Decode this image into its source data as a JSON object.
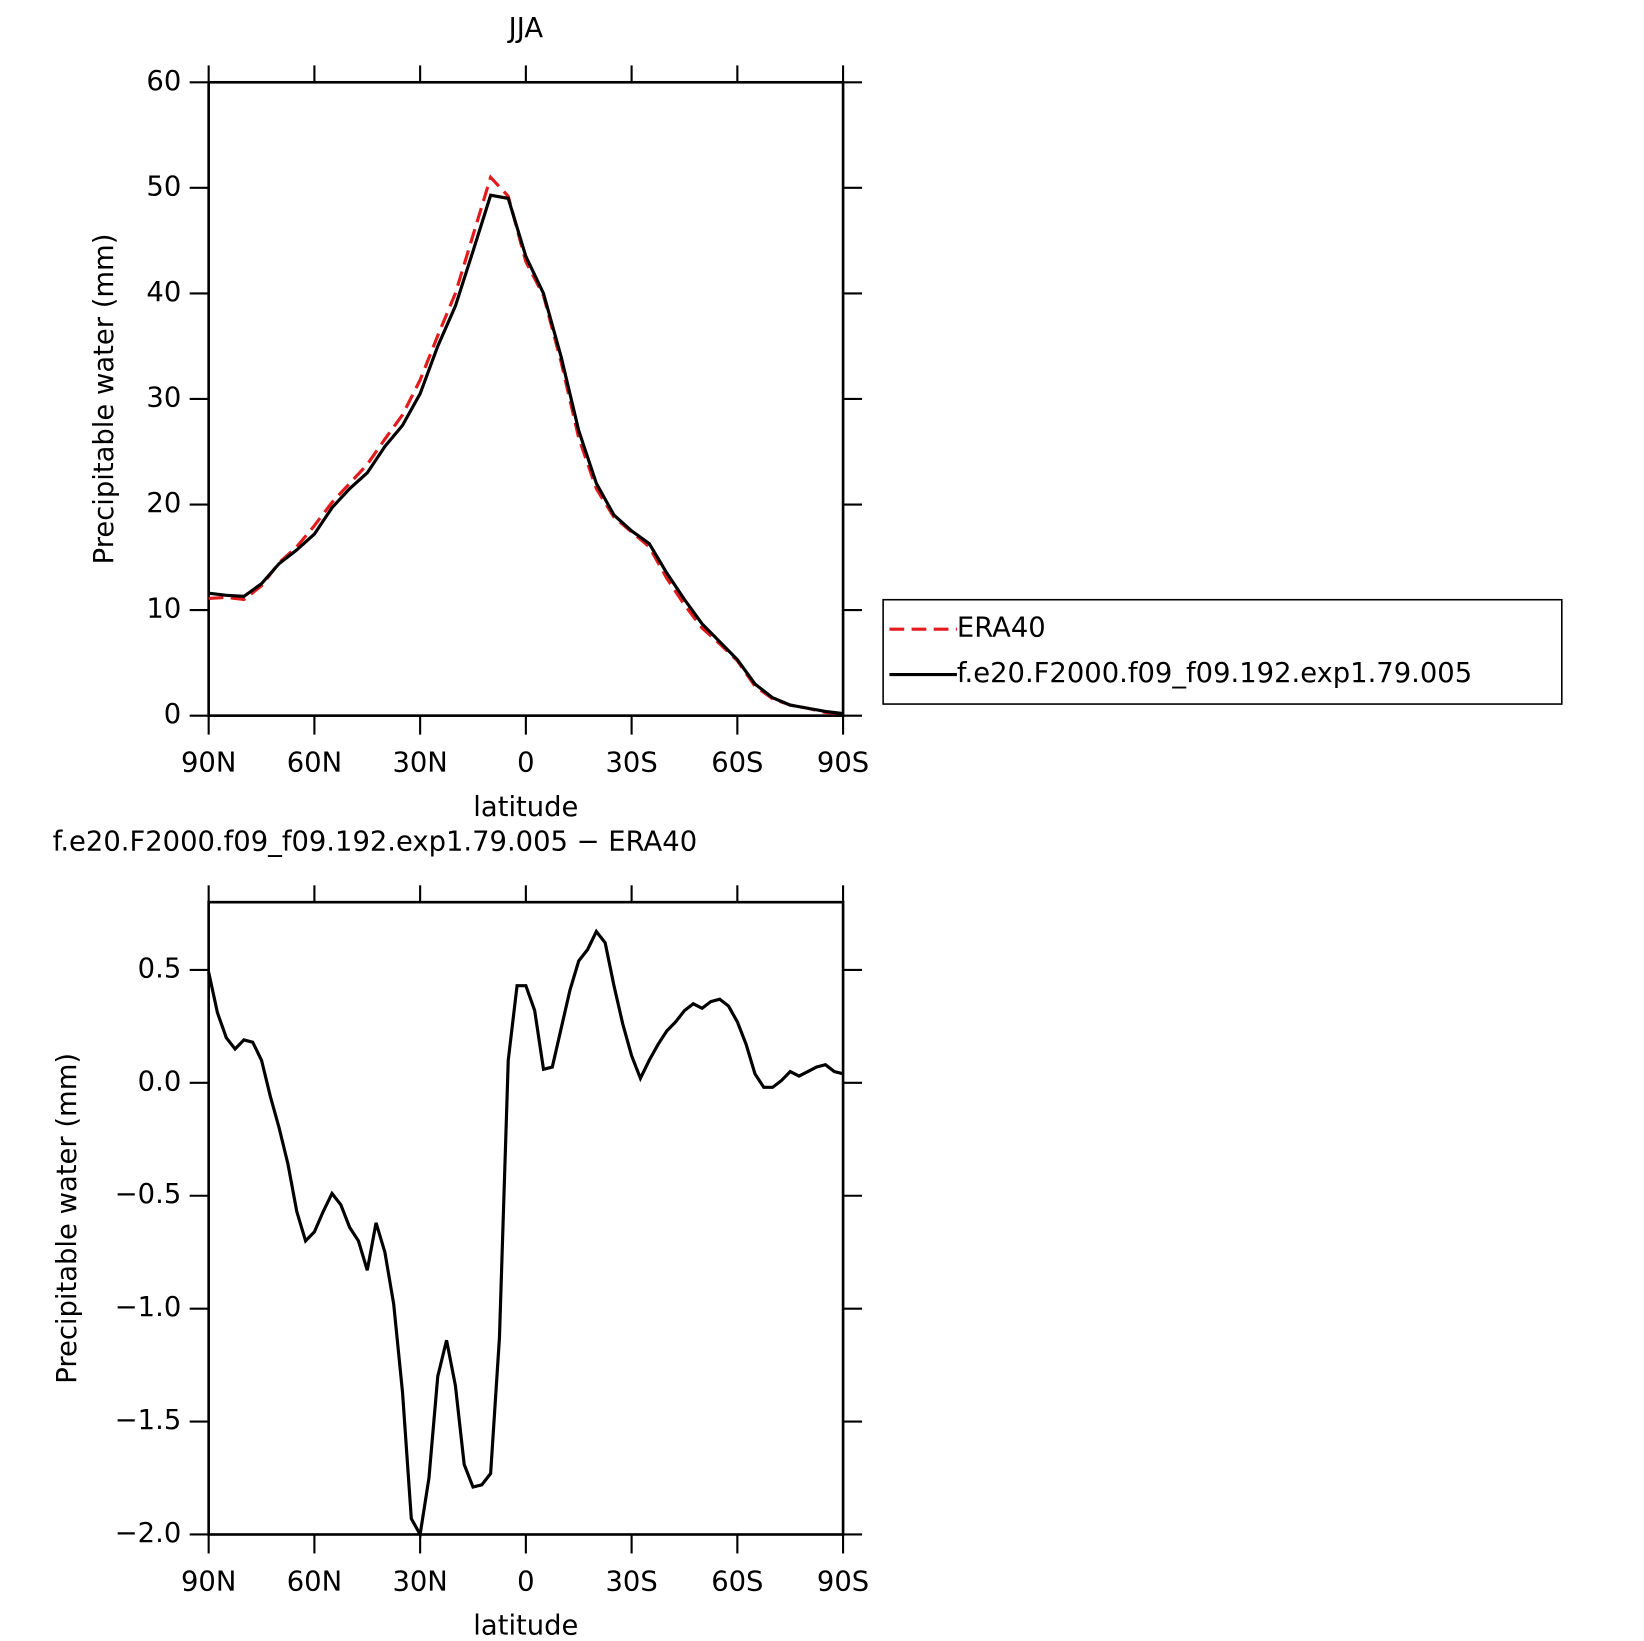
{
  "chart_data": [
    {
      "type": "line",
      "title": "JJA",
      "x_label": "latitude",
      "y_label": "Precipitable water (mm)",
      "x": [
        90,
        85,
        80,
        75,
        70,
        65,
        60,
        55,
        50,
        45,
        40,
        35,
        30,
        25,
        20,
        15,
        10,
        5,
        0,
        -5,
        -10,
        -15,
        -20,
        -25,
        -30,
        -35,
        -40,
        -45,
        -50,
        -55,
        -60,
        -65,
        -70,
        -75,
        -80,
        -85,
        -90
      ],
      "series": [
        {
          "name": "ERA40",
          "color": "#e41a1c",
          "linestyle": "dashed",
          "values": [
            11.1,
            11.2,
            11.0,
            12.3,
            14.5,
            16.0,
            18.0,
            20.2,
            22.0,
            23.8,
            26.2,
            28.5,
            31.8,
            36.0,
            40.0,
            45.5,
            51.0,
            49.2,
            43.0,
            39.8,
            33.5,
            26.3,
            21.5,
            18.8,
            17.4,
            16.0,
            13.0,
            10.5,
            8.3,
            6.8,
            5.2,
            2.8,
            1.6,
            1.0,
            0.7,
            0.3,
            0.2
          ]
        },
        {
          "name": "f.e20.F2000.f09_f09.192.exp1.79.005",
          "color": "#000000",
          "linestyle": "solid",
          "values": [
            11.6,
            11.4,
            11.3,
            12.5,
            14.4,
            15.7,
            17.2,
            19.7,
            21.5,
            23.0,
            25.5,
            27.5,
            30.5,
            35.0,
            38.8,
            44.0,
            49.3,
            49.0,
            43.5,
            40.0,
            34.0,
            27.0,
            22.0,
            19.0,
            17.5,
            16.3,
            13.5,
            11.0,
            8.7,
            7.0,
            5.3,
            3.0,
            1.7,
            1.0,
            0.7,
            0.4,
            0.2
          ]
        }
      ],
      "xlim": [
        90,
        -90
      ],
      "xticks": [
        {
          "value": 90,
          "label": "90N"
        },
        {
          "value": 60,
          "label": "60N"
        },
        {
          "value": 30,
          "label": "30N"
        },
        0,
        {
          "value": -30,
          "label": "30S"
        },
        {
          "value": -60,
          "label": "60S"
        },
        {
          "value": -90,
          "label": "90S"
        }
      ],
      "ylim": [
        0,
        60
      ],
      "yticks": [
        0,
        10,
        20,
        30,
        40,
        50,
        60
      ],
      "legend": "right"
    },
    {
      "type": "line",
      "title": "f.e20.F2000.f09_f09.192.exp1.79.005 − ERA40",
      "x_label": "latitude",
      "y_label": "Precipitable water (mm)",
      "x": [
        90,
        87.5,
        85,
        82.5,
        80,
        77.5,
        75,
        72.5,
        70,
        67.5,
        65,
        62.5,
        60,
        57.5,
        55,
        52.5,
        50,
        47.5,
        45,
        42.5,
        40,
        37.5,
        35,
        32.5,
        30,
        27.5,
        25,
        22.5,
        20,
        17.5,
        15,
        12.5,
        10,
        7.5,
        5,
        2.5,
        0,
        -2.5,
        -5,
        -7.5,
        -10,
        -12.5,
        -15,
        -17.5,
        -20,
        -22.5,
        -25,
        -27.5,
        -30,
        -32.5,
        -35,
        -37.5,
        -40,
        -42.5,
        -45,
        -47.5,
        -50,
        -52.5,
        -55,
        -57.5,
        -60,
        -62.5,
        -65,
        -67.5,
        -70,
        -72.5,
        -75,
        -77.5,
        -80,
        -82.5,
        -85,
        -87.5,
        -90
      ],
      "series": [
        {
          "name": "f.e20.F2000.f09_f09.192.exp1.79.005 − ERA40",
          "color": "#000000",
          "linestyle": "solid",
          "values": [
            0.49,
            0.31,
            0.2,
            0.15,
            0.19,
            0.18,
            0.1,
            -0.06,
            -0.2,
            -0.36,
            -0.57,
            -0.7,
            -0.66,
            -0.57,
            -0.49,
            -0.54,
            -0.64,
            -0.7,
            -0.83,
            -0.62,
            -0.75,
            -0.98,
            -1.37,
            -1.93,
            -2.0,
            -1.75,
            -1.3,
            -1.14,
            -1.34,
            -1.69,
            -1.79,
            -1.78,
            -1.73,
            -1.13,
            0.1,
            0.43,
            0.43,
            0.32,
            0.06,
            0.07,
            0.24,
            0.41,
            0.54,
            0.59,
            0.67,
            0.62,
            0.43,
            0.26,
            0.12,
            0.02,
            0.1,
            0.17,
            0.23,
            0.27,
            0.32,
            0.35,
            0.33,
            0.36,
            0.37,
            0.34,
            0.27,
            0.17,
            0.04,
            -0.02,
            -0.02,
            0.01,
            0.05,
            0.03,
            0.05,
            0.07,
            0.08,
            0.05,
            0.04
          ]
        }
      ],
      "xlim": [
        90,
        -90
      ],
      "xticks": [
        {
          "value": 90,
          "label": "90N"
        },
        {
          "value": 60,
          "label": "60N"
        },
        {
          "value": 30,
          "label": "30N"
        },
        0,
        {
          "value": -30,
          "label": "30S"
        },
        {
          "value": -60,
          "label": "60S"
        },
        {
          "value": -90,
          "label": "90S"
        }
      ],
      "ylim": [
        -2.0,
        0.8
      ],
      "yticks": [
        {
          "value": -2.0,
          "label": "−2.0"
        },
        {
          "value": -1.5,
          "label": "−1.5"
        },
        {
          "value": -1.0,
          "label": "−1.0"
        },
        {
          "value": -0.5,
          "label": "−0.5"
        },
        {
          "value": 0,
          "label": "0.0"
        },
        0.5
      ]
    }
  ]
}
